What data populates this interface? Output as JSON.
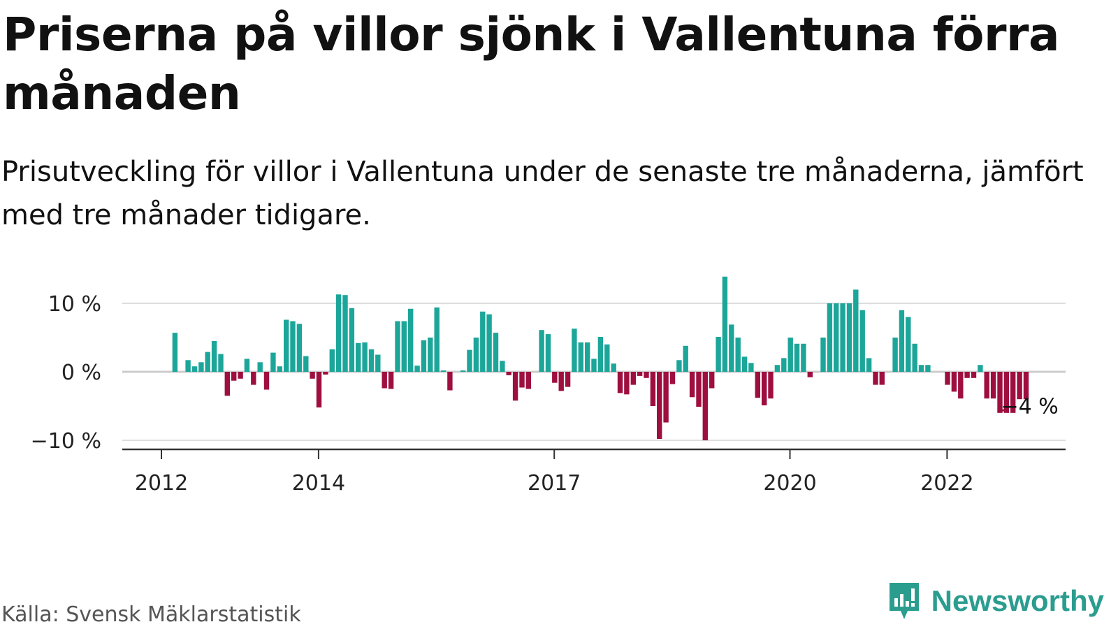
{
  "title": "Priserna på villor sjönk i Vallentuna förra månaden",
  "subtitle": "Prisutveckling för villor i Vallentuna under de senaste tre månaderna, jämfört med tre månader tidigare.",
  "source": "Källa: Svensk Mäklarstatistik",
  "brand": {
    "name": "Newsworthy",
    "icon": "newsworthy-logo-icon"
  },
  "colors": {
    "positive": "#1ca69a",
    "negative": "#9e0f3f",
    "grid": "#dddddd",
    "axis": "#333333"
  },
  "chart_data": {
    "type": "bar",
    "x_start": "2012-01",
    "frequency": "monthly",
    "values": [
      0,
      5.7,
      0,
      1.7,
      0.8,
      1.4,
      2.9,
      4.5,
      2.6,
      -3.5,
      -1.3,
      -1.0,
      1.9,
      -1.9,
      1.4,
      -2.6,
      2.8,
      0.8,
      7.6,
      7.4,
      7.0,
      2.3,
      -1.0,
      -5.2,
      -0.4,
      3.3,
      11.3,
      11.2,
      9.3,
      4.2,
      4.3,
      3.3,
      2.5,
      -2.4,
      -2.5,
      7.4,
      7.4,
      9.2,
      0.9,
      4.6,
      5.0,
      9.4,
      0.2,
      -2.7,
      0,
      0.2,
      3.2,
      5.0,
      8.8,
      8.4,
      5.7,
      1.6,
      -0.5,
      -4.2,
      -2.3,
      -2.5,
      0,
      6.1,
      5.5,
      -1.6,
      -2.8,
      -2.2,
      6.3,
      4.3,
      4.3,
      1.9,
      5.1,
      4.0,
      1.2,
      -3.1,
      -3.3,
      -1.9,
      -0.6,
      -0.9,
      -5.0,
      -9.8,
      -7.4,
      -1.8,
      1.7,
      3.8,
      -3.7,
      -5.1,
      -10.0,
      -2.4,
      5.1,
      13.9,
      6.9,
      5.0,
      2.2,
      1.3,
      -3.8,
      -4.9,
      -3.9,
      1.0,
      2.0,
      5.0,
      4.1,
      4.1,
      -0.8,
      0,
      5.0,
      10.0,
      10.0,
      10.0,
      10.0,
      12.0,
      9.0,
      2.0,
      -1.9,
      -1.9,
      0,
      5.0,
      9.0,
      8.0,
      4.1,
      1.0,
      1.0,
      0,
      0,
      -1.9,
      -2.9,
      -3.9,
      -0.9,
      -0.9,
      1.0,
      -3.9,
      -3.9,
      -6.0,
      -6.0,
      -6.0,
      -4.0,
      -4.0
    ],
    "end_label": "−4 %",
    "y_ticks": [
      10,
      0,
      -10
    ],
    "y_tick_labels": [
      "10 %",
      "0 %",
      "−10 %"
    ],
    "x_ticks": [
      {
        "label": "2012",
        "month_index": 0
      },
      {
        "label": "2014",
        "month_index": 24
      },
      {
        "label": "2017",
        "month_index": 60
      },
      {
        "label": "2020",
        "month_index": 96
      },
      {
        "label": "2022",
        "month_index": 120
      }
    ],
    "ylim": [
      -12,
      14.5
    ],
    "grid": true,
    "legend": "none"
  }
}
